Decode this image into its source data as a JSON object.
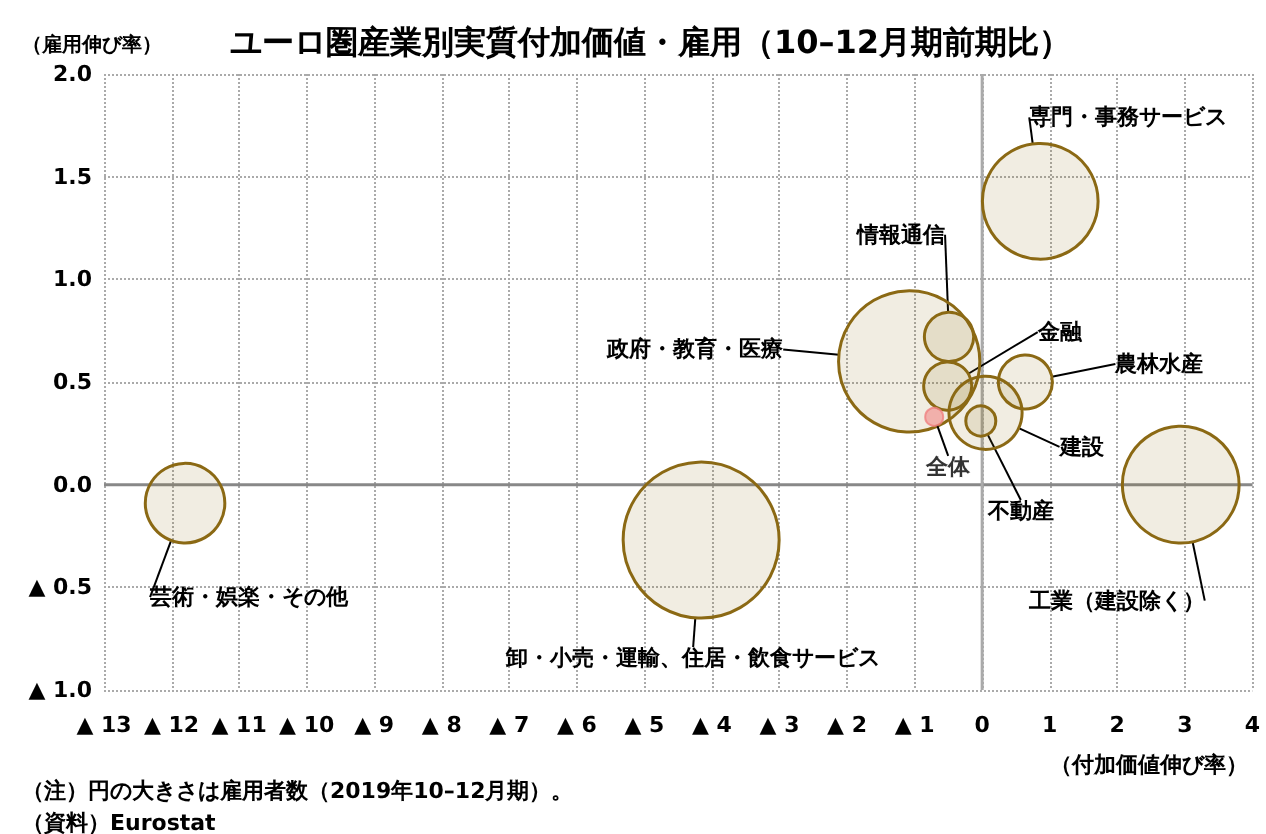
{
  "chart_data": {
    "type": "bubble",
    "title": "ユーロ圏産業別実質付加価値・雇用（10–12月期前期比）",
    "xlabel": "（付加価値伸び率）",
    "ylabel": "（雇用伸び率）",
    "annotations": [
      "（注）円の大きさは雇用者数（2019年10–12月期）。",
      "（資料）Eurostat"
    ],
    "series": [
      {
        "name": "専門・事務サービス",
        "color": "#8b6914",
        "x": [
          0.86
        ],
        "values": [
          1.38
        ],
        "sizes": [
          0.55
        ]
      },
      {
        "name": "情報通信",
        "color": "#8b6914",
        "x": [
          -0.49
        ],
        "values": [
          0.72
        ],
        "sizes": [
          0.1
        ]
      },
      {
        "name": "政府・教育・医療",
        "color": "#8b6914",
        "x": [
          -1.08
        ],
        "values": [
          0.6
        ],
        "sizes": [
          0.82
        ]
      },
      {
        "name": "金融",
        "color": "#8b6914",
        "x": [
          -0.51
        ],
        "values": [
          0.48
        ],
        "sizes": [
          0.095
        ]
      },
      {
        "name": "農林水産",
        "color": "#8b6914",
        "x": [
          0.64
        ],
        "values": [
          0.5
        ],
        "sizes": [
          0.12
        ]
      },
      {
        "name": "建設",
        "color": "#8b6914",
        "x": [
          0.05
        ],
        "values": [
          0.35
        ],
        "sizes": [
          0.22
        ]
      },
      {
        "name": "不動産",
        "color": "#8b6914",
        "x": [
          -0.02
        ],
        "values": [
          0.31
        ],
        "sizes": [
          0.037
        ]
      },
      {
        "name": "全体",
        "type": "scatter",
        "color": "#f08080",
        "x": [
          -0.71
        ],
        "values": [
          0.33
        ]
      },
      {
        "name": "工業（建設除く）",
        "color": "#8b6914",
        "x": [
          2.94
        ],
        "values": [
          0.0
        ],
        "sizes": [
          0.56
        ]
      },
      {
        "name": "卸・小売・運輸、住居・飲食サービス",
        "color": "#8b6914",
        "x": [
          -4.16
        ],
        "values": [
          -0.27
        ],
        "sizes": [
          1
        ]
      },
      {
        "name": "芸術・娯楽・その他",
        "color": "#8b6914",
        "x": [
          -11.8
        ],
        "values": [
          -0.09
        ],
        "sizes": [
          0.26
        ]
      }
    ],
    "xlim": [
      -13,
      4
    ],
    "xticks": [
      {
        "value": -13,
        "label": "▲ 13"
      },
      {
        "value": -12,
        "label": "▲ 12"
      },
      {
        "value": -11,
        "label": "▲ 11"
      },
      {
        "value": -10,
        "label": "▲ 10"
      },
      {
        "value": -9,
        "label": "▲ 9"
      },
      {
        "value": -8,
        "label": "▲ 8"
      },
      {
        "value": -7,
        "label": "▲ 7"
      },
      {
        "value": -6,
        "label": "▲ 6"
      },
      {
        "value": -5,
        "label": "▲ 5"
      },
      {
        "value": -4,
        "label": "▲ 4"
      },
      {
        "value": -3,
        "label": "▲ 3"
      },
      {
        "value": -2,
        "label": "▲ 2"
      },
      {
        "value": -1,
        "label": "▲ 1"
      },
      0,
      1,
      2,
      3,
      4
    ],
    "ylim": [
      -1,
      2
    ],
    "yticks": [
      {
        "value": -1,
        "label": "▲ 1.0"
      },
      {
        "value": -0.5,
        "label": "▲ 0.5"
      },
      {
        "value": 0,
        "label": "0.0"
      },
      {
        "value": 0.5,
        "label": "0.5"
      },
      {
        "value": 1,
        "label": "1.0"
      },
      {
        "value": 1.5,
        "label": "1.5"
      },
      {
        "value": 2,
        "label": "2.0"
      }
    ],
    "grid": true,
    "legend": false
  }
}
